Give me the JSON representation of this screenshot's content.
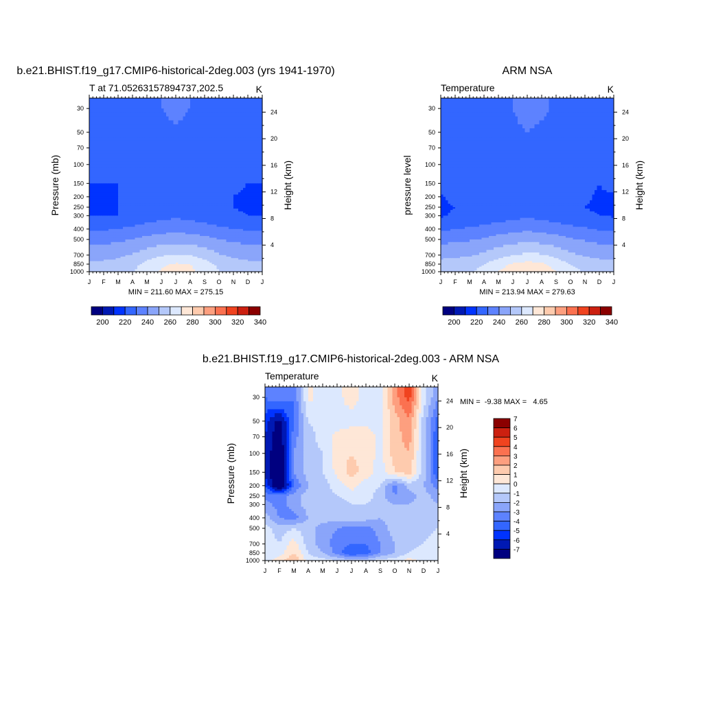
{
  "chart_data": [
    {
      "type": "heatmap",
      "title": "b.e21.BHIST.f19_g17.CMIP6-historical-2deg.003 (yrs 1941-1970)",
      "left_label": "T at 71.05263157894737,202.5",
      "units": "K",
      "ylabel": "Pressure (mb)",
      "ylabel_right": "Height (km)",
      "stats": "MIN = 211.60 MAX = 275.15",
      "x_ticks": [
        "J",
        "F",
        "M",
        "A",
        "M",
        "J",
        "J",
        "A",
        "S",
        "O",
        "N",
        "D",
        "J"
      ],
      "y_ticks": [
        "30",
        "50",
        "70",
        "100",
        "150",
        "200",
        "250",
        "300",
        "400",
        "500",
        "700",
        "850",
        "1000"
      ],
      "y_ticks_right": [
        "24",
        "20",
        "16",
        "12",
        "8",
        "4"
      ],
      "colorbar_labels": [
        "200",
        "220",
        "240",
        "260",
        "280",
        "300",
        "320",
        "340"
      ],
      "colors": [
        "#000080",
        "#0019b3",
        "#0033ff",
        "#3366ff",
        "#5d82ff",
        "#8aa5fa",
        "#b4c8fa",
        "#dce8fe",
        "#fee7d7",
        "#fecbae",
        "#fd9f7f",
        "#fb7150",
        "#f0431f",
        "#cc2010",
        "#8b0000"
      ],
      "levels": [
        200,
        210,
        220,
        230,
        240,
        250,
        260,
        270,
        280,
        290,
        300,
        310,
        320,
        330,
        340
      ],
      "months": [
        1,
        2,
        3,
        4,
        5,
        6,
        7,
        8,
        9,
        10,
        11,
        12,
        13
      ],
      "pressure": [
        30,
        50,
        70,
        100,
        150,
        200,
        250,
        300,
        400,
        500,
        700,
        850,
        1000
      ],
      "z": [
        [
          222,
          222,
          223,
          225,
          227,
          230,
          232,
          230,
          227,
          223,
          222,
          222,
          222
        ],
        [
          222,
          222,
          223,
          225,
          227,
          228,
          229,
          228,
          227,
          224,
          222,
          222,
          222
        ],
        [
          221,
          221,
          222,
          224,
          226,
          227,
          228,
          227,
          226,
          224,
          222,
          221,
          221
        ],
        [
          221,
          221,
          221,
          223,
          225,
          226,
          226,
          226,
          225,
          223,
          222,
          221,
          221
        ],
        [
          220,
          220,
          220,
          222,
          224,
          225,
          225,
          225,
          224,
          222,
          221,
          220,
          220
        ],
        [
          219,
          219,
          220,
          222,
          224,
          225,
          225,
          225,
          224,
          222,
          220,
          219,
          219
        ],
        [
          219,
          219,
          220,
          221,
          223,
          224,
          225,
          224,
          223,
          221,
          220,
          219,
          219
        ],
        [
          220,
          220,
          220,
          222,
          225,
          227,
          228,
          227,
          225,
          222,
          221,
          220,
          220
        ],
        [
          229,
          229,
          230,
          232,
          234,
          236,
          237,
          236,
          234,
          232,
          230,
          229,
          229
        ],
        [
          237,
          237,
          238,
          240,
          243,
          245,
          246,
          245,
          243,
          240,
          238,
          237,
          237
        ],
        [
          247,
          247,
          248,
          251,
          255,
          259,
          261,
          260,
          256,
          251,
          248,
          247,
          247
        ],
        [
          252,
          252,
          253,
          257,
          263,
          268,
          271,
          270,
          264,
          258,
          254,
          252,
          252
        ],
        [
          254,
          254,
          255,
          259,
          266,
          271,
          275,
          272,
          266,
          260,
          256,
          254,
          254
        ]
      ]
    },
    {
      "type": "heatmap",
      "title": "ARM NSA",
      "left_label": "Temperature",
      "units": "K",
      "ylabel": "pressure level",
      "ylabel_right": "Height (km)",
      "stats": "MIN = 213.94 MAX = 279.63",
      "x_ticks": [
        "J",
        "F",
        "M",
        "A",
        "M",
        "J",
        "J",
        "A",
        "S",
        "O",
        "N",
        "D",
        "J"
      ],
      "y_ticks": [
        "30",
        "50",
        "70",
        "100",
        "150",
        "200",
        "250",
        "300",
        "400",
        "500",
        "700",
        "850",
        "1000"
      ],
      "y_ticks_right": [
        "24",
        "20",
        "16",
        "12",
        "8",
        "4"
      ],
      "colorbar_labels": [
        "200",
        "220",
        "240",
        "260",
        "280",
        "300",
        "320",
        "340"
      ],
      "colors": [
        "#000080",
        "#0019b3",
        "#0033ff",
        "#3366ff",
        "#5d82ff",
        "#8aa5fa",
        "#b4c8fa",
        "#dce8fe",
        "#fee7d7",
        "#fecbae",
        "#fd9f7f",
        "#fb7150",
        "#f0431f",
        "#cc2010",
        "#8b0000"
      ],
      "levels": [
        200,
        210,
        220,
        230,
        240,
        250,
        260,
        270,
        280,
        290,
        300,
        310,
        320,
        330,
        340
      ],
      "months": [
        1,
        2,
        3,
        4,
        5,
        6,
        7,
        8,
        9,
        10,
        11,
        12,
        13
      ],
      "pressure": [
        30,
        50,
        70,
        100,
        150,
        200,
        250,
        300,
        400,
        500,
        700,
        850,
        1000
      ],
      "z": [
        [
          225,
          225,
          226,
          227,
          228,
          230,
          232,
          231,
          229,
          226,
          224,
          222,
          225
        ],
        [
          225,
          225,
          226,
          227,
          228,
          229,
          230,
          229,
          228,
          226,
          223,
          222,
          225
        ],
        [
          224,
          224,
          225,
          226,
          227,
          228,
          228,
          228,
          227,
          225,
          223,
          221,
          224
        ],
        [
          224,
          224,
          224,
          225,
          226,
          227,
          227,
          227,
          226,
          225,
          222,
          221,
          224
        ],
        [
          223,
          223,
          223,
          224,
          225,
          226,
          226,
          226,
          225,
          224,
          222,
          220,
          223
        ],
        [
          219,
          222,
          223,
          224,
          225,
          225,
          225,
          225,
          225,
          223,
          221,
          219,
          219
        ],
        [
          219,
          220,
          222,
          223,
          224,
          225,
          225,
          225,
          224,
          222,
          220,
          219,
          219
        ],
        [
          219,
          221,
          222,
          223,
          225,
          227,
          228,
          227,
          225,
          222,
          221,
          220,
          219
        ],
        [
          228,
          230,
          231,
          233,
          235,
          237,
          238,
          237,
          235,
          233,
          231,
          229,
          228
        ],
        [
          237,
          238,
          239,
          241,
          244,
          246,
          247,
          246,
          244,
          241,
          239,
          237,
          237
        ],
        [
          247,
          248,
          249,
          252,
          256,
          260,
          262,
          261,
          257,
          252,
          249,
          247,
          247
        ],
        [
          254,
          254,
          256,
          260,
          266,
          271,
          273,
          272,
          266,
          260,
          256,
          254,
          254
        ],
        [
          257,
          257,
          259,
          263,
          270,
          276,
          279,
          277,
          270,
          264,
          259,
          257,
          257
        ]
      ]
    },
    {
      "type": "heatmap",
      "title": "b.e21.BHIST.f19_g17.CMIP6-historical-2deg.003 - ARM NSA",
      "left_label": "Temperature",
      "units": "K",
      "ylabel": "Pressure (mb)",
      "ylabel_right": "Height (km)",
      "stats": "MIN =  -9.38 MAX =   4.65",
      "x_ticks": [
        "J",
        "F",
        "M",
        "A",
        "M",
        "J",
        "J",
        "A",
        "S",
        "O",
        "N",
        "D",
        "J"
      ],
      "y_ticks": [
        "30",
        "50",
        "70",
        "100",
        "150",
        "200",
        "250",
        "300",
        "400",
        "500",
        "700",
        "850",
        "1000"
      ],
      "y_ticks_right": [
        "24",
        "20",
        "16",
        "12",
        "8",
        "4"
      ],
      "colorbar_labels": [
        "7",
        "6",
        "5",
        "4",
        "3",
        "2",
        "1",
        "0",
        "-1",
        "-2",
        "-3",
        "-4",
        "-5",
        "-6",
        "-7"
      ],
      "colors": [
        "#000080",
        "#0019b3",
        "#0033ff",
        "#3366ff",
        "#5d82ff",
        "#8aa5fa",
        "#b4c8fa",
        "#dce8fe",
        "#fee7d7",
        "#fecbae",
        "#fd9f7f",
        "#fb7150",
        "#f0431f",
        "#cc2010",
        "#8b0000"
      ],
      "levels": [
        -7,
        -6,
        -5,
        -4,
        -3,
        -2,
        -1,
        0,
        1,
        2,
        3,
        4,
        5,
        6,
        7
      ],
      "months": [
        1,
        2,
        3,
        4,
        5,
        6,
        7,
        8,
        9,
        10,
        11,
        12,
        13
      ],
      "pressure": [
        30,
        50,
        70,
        100,
        150,
        200,
        250,
        300,
        400,
        500,
        700,
        850,
        1000
      ],
      "z": [
        [
          -4.0,
          -3.0,
          -4.0,
          0.3,
          -0.5,
          -0.3,
          0.5,
          -0.5,
          -0.5,
          2.5,
          4.5,
          -0.5,
          -3.0
        ],
        [
          -5.5,
          -7.5,
          -4.0,
          -1.0,
          -0.5,
          -0.5,
          -0.5,
          -0.5,
          -0.5,
          1.5,
          3.0,
          -1.5,
          -4.5
        ],
        [
          -6.0,
          -8.0,
          -3.5,
          -1.5,
          -0.5,
          0.3,
          0.8,
          0.8,
          -0.3,
          1.5,
          2.5,
          -1.5,
          -5.0
        ],
        [
          -6.0,
          -8.5,
          -3.0,
          -1.5,
          -1.0,
          0.5,
          1.0,
          0.5,
          -0.3,
          1.5,
          2.0,
          -1.5,
          -5.0
        ],
        [
          -6.5,
          -8.5,
          -3.0,
          -1.5,
          -1.0,
          0.3,
          1.5,
          0.5,
          -0.5,
          1.0,
          1.5,
          -1.5,
          -5.0
        ],
        [
          -5.0,
          -9.2,
          -4.0,
          -2.0,
          -1.5,
          -0.5,
          0.3,
          -0.5,
          -1.0,
          -3.5,
          -1.5,
          -2.0,
          -3.5
        ],
        [
          -3.5,
          -3.5,
          -2.5,
          -1.5,
          -1.5,
          -1.0,
          -0.3,
          -0.5,
          -1.5,
          -3.0,
          -2.5,
          -1.5,
          -2.5
        ],
        [
          -2.5,
          -3.5,
          -2.5,
          -1.5,
          -2.0,
          -2.0,
          -1.0,
          -1.0,
          -1.5,
          -2.0,
          -2.0,
          -1.5,
          -2.0
        ],
        [
          -1.5,
          -3.0,
          -3.5,
          -2.0,
          -1.5,
          -1.5,
          -1.0,
          -1.5,
          -2.0,
          -1.5,
          -1.5,
          -1.0,
          -1.5
        ],
        [
          -0.5,
          -1.5,
          -1.0,
          -1.5,
          -2.5,
          -3.0,
          -3.5,
          -3.5,
          -2.5,
          -1.5,
          -1.5,
          -1.5,
          -1.0
        ],
        [
          -0.5,
          -1.0,
          0.5,
          -1.5,
          -2.5,
          -3.5,
          -4.0,
          -4.0,
          -3.0,
          -2.0,
          -1.5,
          -1.0,
          -0.5
        ],
        [
          -0.5,
          -0.5,
          1.0,
          -1.0,
          -2.0,
          -3.5,
          -5.0,
          -4.5,
          -3.0,
          -2.0,
          -1.0,
          -0.5,
          -0.5
        ],
        [
          -0.5,
          0.5,
          2.0,
          -0.5,
          -0.5,
          -1.0,
          -1.5,
          -1.5,
          -0.5,
          -0.5,
          0.5,
          -0.5,
          -0.5
        ]
      ]
    }
  ]
}
